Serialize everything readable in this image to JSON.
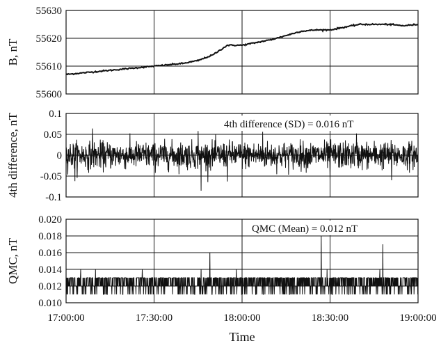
{
  "chart_data": [
    {
      "type": "line",
      "ylabel": "B, nT",
      "ylim": [
        55600,
        55630
      ],
      "yticks": [
        55600,
        55610,
        55620,
        55630
      ],
      "ytick_labels": [
        "55600",
        "55610",
        "55620",
        "55630"
      ],
      "grid": true,
      "series": [
        {
          "x": [
            "17:00:00",
            "17:10:00",
            "17:20:00",
            "17:30:00",
            "17:40:00",
            "17:45:00",
            "17:50:00",
            "17:55:00",
            "18:00:00",
            "18:05:00",
            "18:10:00",
            "18:15:00",
            "18:20:00",
            "18:25:00",
            "18:30:00",
            "18:35:00",
            "18:40:00",
            "18:45:00",
            "18:50:00",
            "18:55:00",
            "19:00:00"
          ],
          "y": [
            55607,
            55608,
            55609,
            55610,
            55611,
            55612,
            55614,
            55617.5,
            55617.5,
            55618.5,
            55619.5,
            55621,
            55622.5,
            55623,
            55623,
            55624,
            55625,
            55625,
            55625,
            55624.5,
            55625
          ]
        }
      ]
    },
    {
      "type": "line",
      "ylabel": "4th difference, nT",
      "ylim": [
        -0.1,
        0.1
      ],
      "yticks": [
        -0.1,
        -0.05,
        0,
        0.05,
        0.1
      ],
      "ytick_labels": [
        "-0.1",
        "-0.05",
        "0",
        "0.05",
        "0.1"
      ],
      "grid": true,
      "annotation": "4th difference (SD) = 0.016 nT",
      "noise": {
        "mean": 0,
        "sd": 0.016
      },
      "spikes": [
        {
          "x": "17:09:00",
          "y": 0.064
        },
        {
          "x": "17:03:00",
          "y": -0.062
        },
        {
          "x": "17:45:00",
          "y": 0.058
        },
        {
          "x": "17:46:00",
          "y": -0.085
        },
        {
          "x": "17:55:00",
          "y": -0.063
        },
        {
          "x": "18:07:00",
          "y": 0.056
        },
        {
          "x": "18:39:00",
          "y": 0.052
        },
        {
          "x": "18:30:00",
          "y": -0.058
        },
        {
          "x": "18:51:00",
          "y": -0.06
        }
      ]
    },
    {
      "type": "line",
      "ylabel": "QMC, nT",
      "xlabel": "Time",
      "ylim": [
        0.01,
        0.02
      ],
      "yticks": [
        0.01,
        0.012,
        0.014,
        0.016,
        0.018,
        0.02
      ],
      "ytick_labels": [
        "0.010",
        "0.012",
        "0.014",
        "0.016",
        "0.018",
        "0.020"
      ],
      "grid": true,
      "annotation": "QMC (Mean) = 0.012 nT",
      "levels": [
        0.011,
        0.012,
        0.013
      ],
      "spikes": [
        {
          "x": "17:05:00",
          "y": 0.014
        },
        {
          "x": "17:10:00",
          "y": 0.014
        },
        {
          "x": "17:26:00",
          "y": 0.014
        },
        {
          "x": "17:46:00",
          "y": 0.014
        },
        {
          "x": "17:49:00",
          "y": 0.016
        },
        {
          "x": "17:58:00",
          "y": 0.014
        },
        {
          "x": "18:27:00",
          "y": 0.018
        },
        {
          "x": "18:29:00",
          "y": 0.014
        },
        {
          "x": "18:48:00",
          "y": 0.017
        },
        {
          "x": "18:47:00",
          "y": 0.014
        }
      ],
      "xticks": [
        "17:00:00",
        "17:30:00",
        "18:00:00",
        "18:30:00",
        "19:00:00"
      ],
      "xlim": [
        "17:00:00",
        "19:00:00"
      ]
    }
  ]
}
